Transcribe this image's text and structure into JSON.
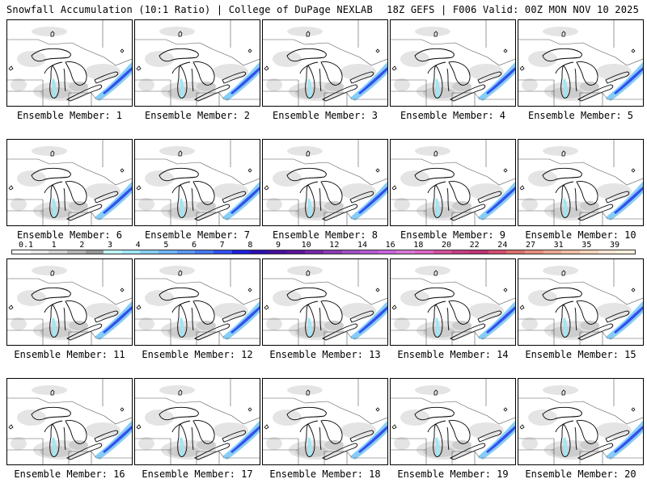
{
  "header": {
    "left_title": "Snowfall Accumulation (10:1 Ratio) | College of DuPage NEXLAB",
    "right_title": "18Z GEFS | F006 Valid: 00Z MON NOV 10 2025"
  },
  "caption_prefix": "Ensemble Member:",
  "members": [
    {
      "label": "Ensemble Member: 1"
    },
    {
      "label": "Ensemble Member: 2"
    },
    {
      "label": "Ensemble Member: 3"
    },
    {
      "label": "Ensemble Member: 4"
    },
    {
      "label": "Ensemble Member: 5"
    },
    {
      "label": "Ensemble Member: 6"
    },
    {
      "label": "Ensemble Member: 7"
    },
    {
      "label": "Ensemble Member: 8"
    },
    {
      "label": "Ensemble Member: 9"
    },
    {
      "label": "Ensemble Member: 10"
    },
    {
      "label": "Ensemble Member: 11"
    },
    {
      "label": "Ensemble Member: 12"
    },
    {
      "label": "Ensemble Member: 13"
    },
    {
      "label": "Ensemble Member: 14"
    },
    {
      "label": "Ensemble Member: 15"
    },
    {
      "label": "Ensemble Member: 16"
    },
    {
      "label": "Ensemble Member: 17"
    },
    {
      "label": "Ensemble Member: 18"
    },
    {
      "label": "Ensemble Member: 19"
    },
    {
      "label": "Ensemble Member: 20"
    }
  ],
  "colorbar": {
    "labels": [
      "0.1",
      "1",
      "2",
      "3",
      "4",
      "5",
      "6",
      "7",
      "8",
      "9",
      "10",
      "12",
      "14",
      "16",
      "18",
      "20",
      "22",
      "24",
      "27",
      "31",
      "35",
      "39"
    ],
    "colors": [
      "#ffffff",
      "#e8e8e8",
      "#d2d2d2",
      "#b4b4b4",
      "#969696",
      "#bff5f5",
      "#a0e6f5",
      "#87cdf5",
      "#6eb4f5",
      "#5a96f0",
      "#4678f0",
      "#3250f0",
      "#1e1edc",
      "#2d0fb4",
      "#460f9b",
      "#5a1496",
      "#7328a5",
      "#8c3cb4",
      "#a050c3",
      "#b45ad2",
      "#c864dc",
      "#d778d2",
      "#dc64c3",
      "#d2509b",
      "#c83c82",
      "#be3273",
      "#d24b6e",
      "#dc6e6e",
      "#e68c7d",
      "#eba591",
      "#f0bea5",
      "#f5d2b9",
      "#fae6d2",
      "#fff0dc"
    ]
  }
}
